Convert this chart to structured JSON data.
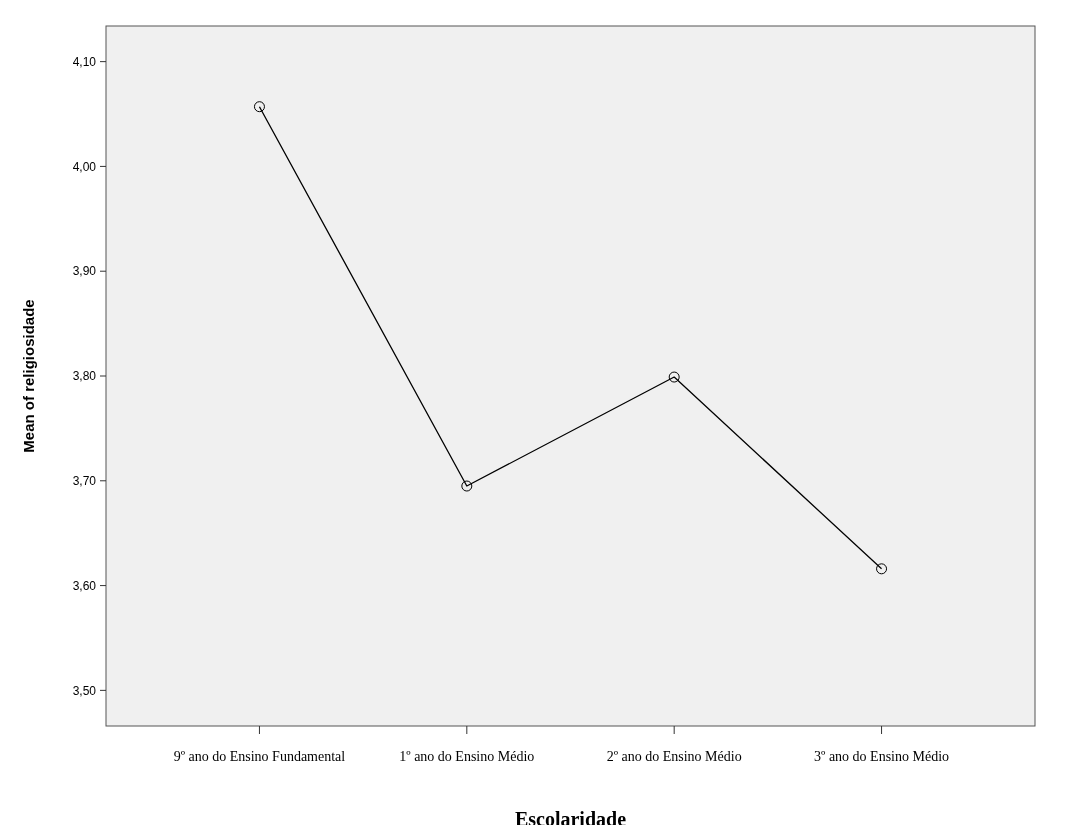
{
  "chart_data": {
    "type": "line",
    "xlabel": "Escolaridade",
    "ylabel": "Mean of religiosidade",
    "categories": [
      "9º ano do Ensino Fundamental",
      "1º ano do Ensino Médio",
      "2º ano do Ensino Médio",
      "3º ano do Ensino Médio"
    ],
    "series": [
      {
        "color": "#000000",
        "values": [
          4.057,
          3.695,
          3.799,
          3.616
        ]
      }
    ],
    "ylim": [
      3.466,
      4.134
    ],
    "yticks": [
      {
        "value": 3.5,
        "label": "3,50"
      },
      {
        "value": 3.6,
        "label": "3,60"
      },
      {
        "value": 3.7,
        "label": "3,70"
      },
      {
        "value": 3.8,
        "label": "3,80"
      },
      {
        "value": 3.9,
        "label": "3,90"
      },
      {
        "value": 4.0,
        "label": "4,00"
      },
      {
        "value": 4.1,
        "label": "4,10"
      }
    ],
    "marker": "circle",
    "line_style": "solid"
  }
}
